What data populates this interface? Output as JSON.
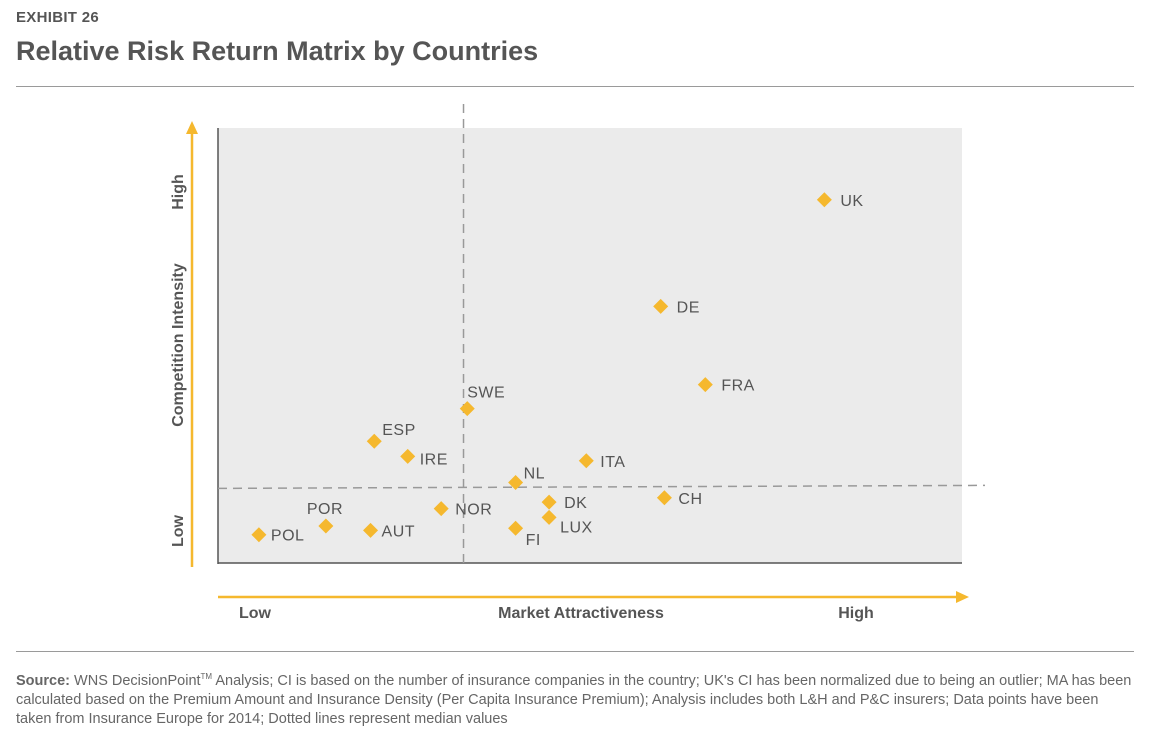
{
  "header": {
    "exhibit": "EXHIBIT 26",
    "title": "Relative Risk Return Matrix by Countries"
  },
  "footer": {
    "source_label": "Source:",
    "source_prefix": "WNS DecisionPoint",
    "source_tm": "TM",
    "source_text": " Analysis; CI is based on the number of insurance companies in the country; UK's CI has been normalized due to being an outlier; MA has been calculated based on the Premium Amount and Insurance Density (Per Capita Insurance Premium); Analysis includes both L&H and P&C insurers; Data points have been taken from Insurance Europe for 2014; Dotted lines represent median values"
  },
  "chart_data": {
    "type": "scatter",
    "xlabel": "Market Attractiveness",
    "ylabel": "Competition Intensity",
    "x_low_label": "Low",
    "x_high_label": "High",
    "y_low_label": "Low",
    "y_high_label": "High",
    "xlim": [
      0,
      100
    ],
    "ylim": [
      0,
      100
    ],
    "median_x": 33,
    "median_y": 17.5,
    "marker_color": "#F5B82E",
    "axis_color": "#F5B82E",
    "plot_bg": "#EBEBEB",
    "points": [
      {
        "label": "UK",
        "x": 81.5,
        "y": 83.5
      },
      {
        "label": "DE",
        "x": 59.5,
        "y": 59
      },
      {
        "label": "FRA",
        "x": 65.5,
        "y": 41
      },
      {
        "label": "SWE",
        "x": 33.5,
        "y": 35.5
      },
      {
        "label": "ESP",
        "x": 21,
        "y": 28
      },
      {
        "label": "IRE",
        "x": 25.5,
        "y": 24.5
      },
      {
        "label": "ITA",
        "x": 49.5,
        "y": 23.5
      },
      {
        "label": "NL",
        "x": 40,
        "y": 18.5
      },
      {
        "label": "CH",
        "x": 60,
        "y": 15
      },
      {
        "label": "DK",
        "x": 44.5,
        "y": 14
      },
      {
        "label": "NOR",
        "x": 30,
        "y": 12.5
      },
      {
        "label": "LUX",
        "x": 44.5,
        "y": 10.5
      },
      {
        "label": "FI",
        "x": 40,
        "y": 8
      },
      {
        "label": "POR",
        "x": 14.5,
        "y": 8.5
      },
      {
        "label": "AUT",
        "x": 20.5,
        "y": 7.5
      },
      {
        "label": "POL",
        "x": 5.5,
        "y": 6.5
      }
    ]
  }
}
